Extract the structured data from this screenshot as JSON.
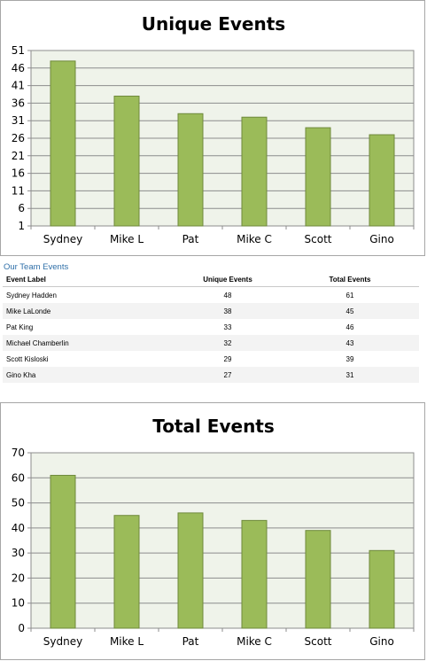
{
  "colors": {
    "bar": "#9bbb59",
    "bar_stroke": "#6f8a3c",
    "plot_bg": "#eff3ea",
    "grid": "#8c8c8c"
  },
  "chart_data": [
    {
      "type": "bar",
      "title": "Unique Events",
      "categories": [
        "Sydney",
        "Mike L",
        "Pat",
        "Mike C",
        "Scott",
        "Gino"
      ],
      "values": [
        48,
        38,
        33,
        32,
        29,
        27
      ],
      "ylim": [
        1,
        51
      ],
      "yticks": [
        1,
        6,
        11,
        16,
        21,
        26,
        31,
        36,
        41,
        46,
        51
      ],
      "grid": true
    },
    {
      "type": "bar",
      "title": "Total Events",
      "categories": [
        "Sydney",
        "Mike L",
        "Pat",
        "Mike C",
        "Scott",
        "Gino"
      ],
      "values": [
        61,
        45,
        46,
        43,
        39,
        31
      ],
      "ylim": [
        0,
        70
      ],
      "yticks": [
        0,
        10,
        20,
        30,
        40,
        50,
        60,
        70
      ],
      "grid": true
    }
  ],
  "table": {
    "title": "Our Team Events",
    "headers": [
      "Event Label",
      "Unique Events",
      "Total Events"
    ],
    "rows": [
      [
        "Sydney Hadden",
        "48",
        "61"
      ],
      [
        "Mike LaLonde",
        "38",
        "45"
      ],
      [
        "Pat King",
        "33",
        "46"
      ],
      [
        "Michael Chamberlin",
        "32",
        "43"
      ],
      [
        "Scott Kisloski",
        "29",
        "39"
      ],
      [
        "Gino Kha",
        "27",
        "31"
      ]
    ]
  }
}
